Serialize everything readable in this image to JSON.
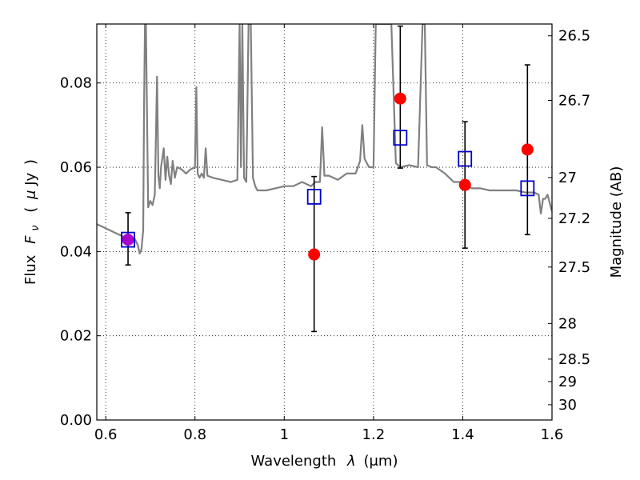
{
  "chart_data": {
    "type": "scatter",
    "xlabel": "Wavelength",
    "xlabel_symbol": "λ",
    "xlabel_unit": "(μm)",
    "ylabel": "Flux",
    "ylabel_symbol": "F",
    "ylabel_symbol_sub": "ν",
    "ylabel_unit_open": "(",
    "ylabel_unit_mu": "μ",
    "ylabel_unit": "Jy",
    "ylabel_unit_close": ")",
    "ylabel_right": "Magnitude (AB)",
    "xlim": [
      0.58,
      1.6
    ],
    "ylim": [
      0.0,
      0.094
    ],
    "grid": true,
    "x_ticks": [
      0.6,
      0.8,
      1.0,
      1.2,
      1.4,
      1.6
    ],
    "x_tick_labels": [
      "0.6",
      "0.8",
      "1",
      "1.2",
      "1.4",
      "1.6"
    ],
    "y_ticks": [
      0.0,
      0.02,
      0.04,
      0.06,
      0.08
    ],
    "y_tick_labels": [
      "0.00",
      "0.02",
      "0.04",
      "0.06",
      "0.08"
    ],
    "right_ticks": [
      26.5,
      26.7,
      27.0,
      27.2,
      27.5,
      28.0,
      28.5,
      29.0,
      30.0
    ],
    "right_tick_labels": [
      "26.5",
      "26.7",
      "27",
      "27.2",
      "27.5",
      "28",
      "28.5",
      "29",
      "30"
    ],
    "series": [
      {
        "kind": "model-spectrum",
        "color": "#808080",
        "x": [
          0.58,
          0.6,
          0.62,
          0.64,
          0.655,
          0.665,
          0.672,
          0.676,
          0.68,
          0.684,
          0.686,
          0.688,
          0.69,
          0.695,
          0.7,
          0.705,
          0.71,
          0.715,
          0.718,
          0.721,
          0.724,
          0.73,
          0.734,
          0.738,
          0.742,
          0.746,
          0.75,
          0.755,
          0.76,
          0.77,
          0.78,
          0.79,
          0.8,
          0.803,
          0.806,
          0.81,
          0.815,
          0.82,
          0.824,
          0.828,
          0.84,
          0.86,
          0.88,
          0.895,
          0.9,
          0.903,
          0.906,
          0.91,
          0.915,
          0.92,
          0.925,
          0.93,
          0.935,
          0.94,
          0.96,
          0.98,
          1.0,
          1.02,
          1.04,
          1.06,
          1.07,
          1.08,
          1.085,
          1.09,
          1.1,
          1.12,
          1.14,
          1.16,
          1.17,
          1.175,
          1.18,
          1.19,
          1.2,
          1.205,
          1.21,
          1.22,
          1.23,
          1.24,
          1.25,
          1.26,
          1.28,
          1.3,
          1.31,
          1.315,
          1.32,
          1.33,
          1.34,
          1.36,
          1.38,
          1.4,
          1.42,
          1.44,
          1.46,
          1.48,
          1.5,
          1.52,
          1.54,
          1.56,
          1.57,
          1.575,
          1.58,
          1.585,
          1.59,
          1.6
        ],
        "y": [
          0.0465,
          0.0455,
          0.0445,
          0.0435,
          0.0425,
          0.043,
          0.0415,
          0.0395,
          0.0405,
          0.045,
          0.075,
          0.094,
          0.094,
          0.0505,
          0.052,
          0.051,
          0.0535,
          0.0815,
          0.058,
          0.055,
          0.06,
          0.0645,
          0.057,
          0.0625,
          0.058,
          0.056,
          0.0615,
          0.0575,
          0.06,
          0.0595,
          0.0585,
          0.0595,
          0.06,
          0.079,
          0.0585,
          0.0575,
          0.0585,
          0.0575,
          0.0645,
          0.058,
          0.0575,
          0.057,
          0.0565,
          0.057,
          0.094,
          0.06,
          0.094,
          0.0575,
          0.0565,
          0.094,
          0.094,
          0.0575,
          0.0555,
          0.0545,
          0.0545,
          0.055,
          0.0555,
          0.0555,
          0.0565,
          0.0555,
          0.0565,
          0.0565,
          0.0695,
          0.058,
          0.058,
          0.057,
          0.0585,
          0.0585,
          0.0615,
          0.07,
          0.062,
          0.06,
          0.06,
          0.094,
          0.094,
          0.094,
          0.094,
          0.094,
          0.061,
          0.06,
          0.0605,
          0.06,
          0.094,
          0.094,
          0.0605,
          0.06,
          0.06,
          0.0585,
          0.0565,
          0.0565,
          0.055,
          0.055,
          0.0545,
          0.0545,
          0.0545,
          0.0545,
          0.054,
          0.054,
          0.0535,
          0.049,
          0.0525,
          0.0525,
          0.0535,
          0.0495
        ]
      },
      {
        "kind": "observed",
        "marker": "circle",
        "color": "#ff0000",
        "x": [
          0.65,
          1.067,
          1.26,
          1.405,
          1.545
        ],
        "y": [
          0.0428,
          0.0393,
          0.0763,
          0.0558,
          0.0642
        ],
        "err_low": [
          0.0368,
          0.021,
          0.0598,
          0.0408,
          0.044
        ],
        "err_high": [
          0.0492,
          0.0578,
          0.0935,
          0.0708,
          0.0843
        ]
      },
      {
        "kind": "model-photometry",
        "marker": "square-open",
        "color": "#0000cc",
        "x": [
          0.65,
          1.067,
          1.26,
          1.405,
          1.545
        ],
        "y": [
          0.0428,
          0.053,
          0.067,
          0.062,
          0.055
        ]
      }
    ],
    "overlap_marker_color": "#aa00cc"
  }
}
